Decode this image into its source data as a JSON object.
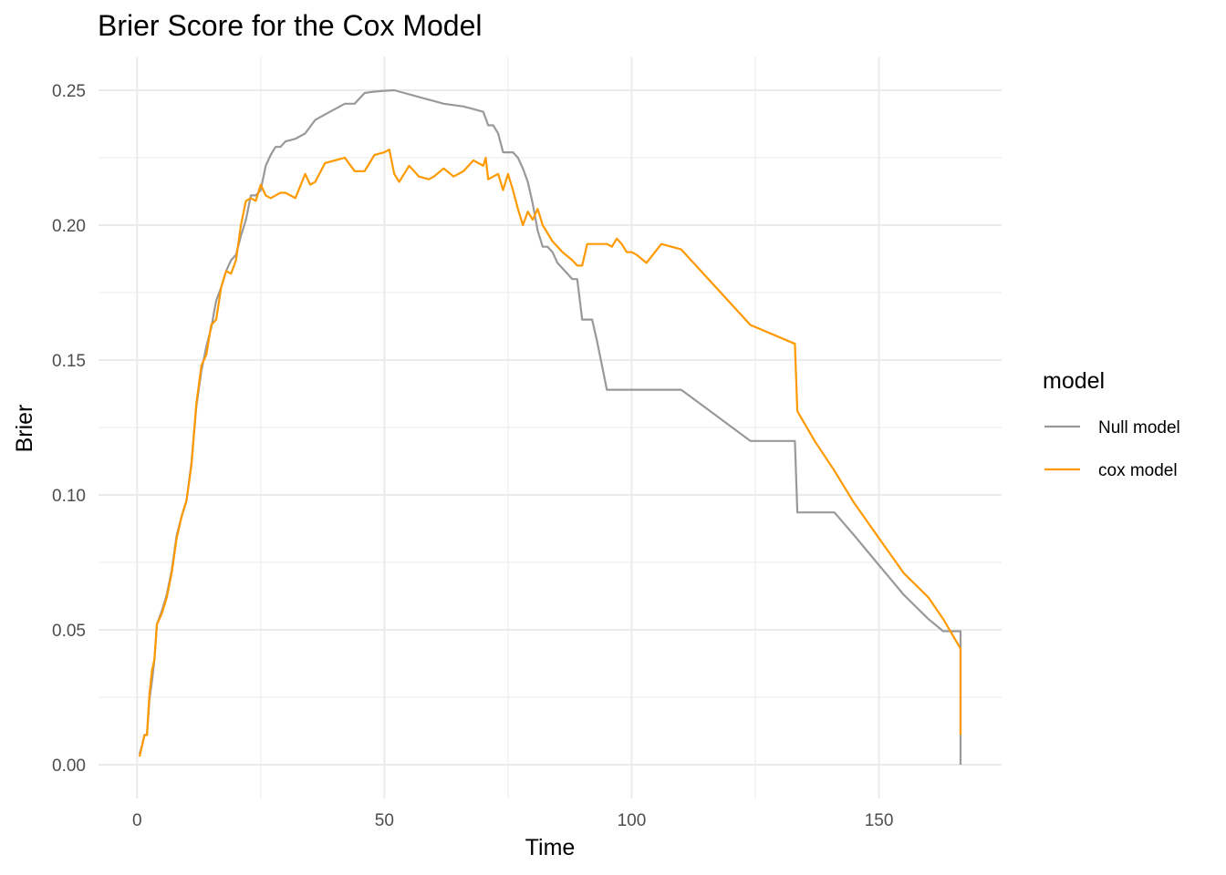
{
  "chart_data": {
    "type": "line",
    "title": "Brier Score for the Cox Model",
    "xlabel": "Time",
    "ylabel": "Brier",
    "xlim": [
      -7.8,
      174.8
    ],
    "ylim": [
      -0.0125,
      0.2625
    ],
    "x_ticks": [
      0,
      50,
      100,
      150
    ],
    "x_tick_labels": [
      "0",
      "50",
      "100",
      "150"
    ],
    "y_ticks": [
      0.0,
      0.05,
      0.1,
      0.15,
      0.2,
      0.25
    ],
    "y_tick_labels": [
      "0.00",
      "0.05",
      "0.10",
      "0.15",
      "0.20",
      "0.25"
    ],
    "grid": true,
    "legend": {
      "title": "model",
      "position": "right"
    },
    "series": [
      {
        "name": "Null model",
        "color": "#999999",
        "x": [
          0.5,
          1,
          1.5,
          2,
          2.5,
          3,
          3.5,
          4,
          5,
          6,
          7,
          8,
          9,
          10,
          11,
          12,
          13,
          14,
          15,
          16,
          17,
          18,
          19,
          20,
          21,
          22,
          23,
          24,
          25,
          26,
          27,
          28,
          29,
          30,
          32,
          34,
          36,
          38,
          40,
          42,
          44,
          46,
          48,
          50,
          52,
          54,
          56,
          58,
          60,
          62,
          64,
          66,
          68,
          70,
          71,
          72,
          73,
          74,
          75,
          76,
          77,
          78,
          79,
          80,
          81,
          82,
          83,
          84,
          85,
          86,
          87,
          88,
          89,
          90,
          90.5,
          91,
          92,
          93,
          94,
          95,
          96,
          100,
          105,
          110,
          124,
          129,
          133,
          133.5,
          137,
          141,
          145,
          150,
          155,
          160,
          163,
          166.5,
          166.5
        ],
        "y": [
          0.004,
          0.007,
          0.011,
          0.011,
          0.024,
          0.031,
          0.039,
          0.052,
          0.057,
          0.063,
          0.072,
          0.085,
          0.092,
          0.098,
          0.112,
          0.133,
          0.146,
          0.155,
          0.162,
          0.172,
          0.177,
          0.183,
          0.187,
          0.189,
          0.196,
          0.202,
          0.211,
          0.211,
          0.213,
          0.222,
          0.226,
          0.229,
          0.229,
          0.231,
          0.232,
          0.234,
          0.239,
          0.241,
          0.243,
          0.245,
          0.245,
          0.249,
          0.2495,
          0.2498,
          0.25,
          0.249,
          0.248,
          0.247,
          0.246,
          0.245,
          0.2445,
          0.244,
          0.243,
          0.242,
          0.237,
          0.237,
          0.234,
          0.227,
          0.227,
          0.227,
          0.225,
          0.221,
          0.216,
          0.208,
          0.198,
          0.192,
          0.192,
          0.19,
          0.186,
          0.184,
          0.182,
          0.18,
          0.18,
          0.165,
          0.165,
          0.165,
          0.165,
          0.157,
          0.148,
          0.139,
          0.139,
          0.139,
          0.139,
          0.139,
          0.12,
          0.12,
          0.12,
          0.0935,
          0.0935,
          0.0935,
          0.085,
          0.074,
          0.063,
          0.054,
          0.0495,
          0.0495,
          0.0
        ]
      },
      {
        "name": "cox model",
        "color": "#ff9900",
        "x": [
          0.5,
          1,
          1.5,
          2,
          2.5,
          3,
          3.5,
          4,
          5,
          6,
          7,
          8,
          9,
          10,
          11,
          12,
          13,
          14,
          15,
          16,
          17,
          18,
          19,
          20,
          21,
          22,
          23,
          24,
          25,
          26,
          27,
          28,
          29,
          30,
          32,
          34,
          35,
          36,
          38,
          40,
          42,
          44,
          46,
          48,
          50,
          51,
          52,
          53,
          55,
          56,
          57,
          59,
          60,
          62,
          64,
          66,
          68,
          70,
          70.5,
          71,
          72,
          73,
          74,
          75,
          76,
          77,
          78,
          79,
          80,
          81,
          82,
          83,
          84,
          86,
          88,
          89,
          90,
          91,
          95,
          96,
          97,
          98,
          99,
          100,
          101,
          103,
          106,
          110,
          124,
          133,
          133.5,
          137,
          141,
          145,
          150,
          155,
          160,
          163,
          166.5,
          166.5
        ],
        "y": [
          0.003,
          0.007,
          0.011,
          0.011,
          0.026,
          0.035,
          0.039,
          0.052,
          0.056,
          0.062,
          0.071,
          0.084,
          0.092,
          0.098,
          0.111,
          0.134,
          0.148,
          0.152,
          0.163,
          0.165,
          0.177,
          0.183,
          0.182,
          0.187,
          0.2,
          0.209,
          0.21,
          0.209,
          0.215,
          0.211,
          0.21,
          0.211,
          0.212,
          0.212,
          0.21,
          0.219,
          0.215,
          0.216,
          0.223,
          0.224,
          0.225,
          0.22,
          0.22,
          0.226,
          0.227,
          0.228,
          0.219,
          0.216,
          0.222,
          0.22,
          0.218,
          0.217,
          0.218,
          0.221,
          0.218,
          0.22,
          0.224,
          0.222,
          0.225,
          0.217,
          0.218,
          0.219,
          0.213,
          0.219,
          0.213,
          0.206,
          0.2,
          0.205,
          0.202,
          0.206,
          0.2,
          0.197,
          0.194,
          0.19,
          0.187,
          0.185,
          0.185,
          0.193,
          0.193,
          0.192,
          0.195,
          0.193,
          0.19,
          0.19,
          0.189,
          0.186,
          0.193,
          0.191,
          0.163,
          0.156,
          0.131,
          0.12,
          0.109,
          0.097,
          0.084,
          0.071,
          0.062,
          0.054,
          0.043,
          0.011
        ]
      }
    ]
  }
}
